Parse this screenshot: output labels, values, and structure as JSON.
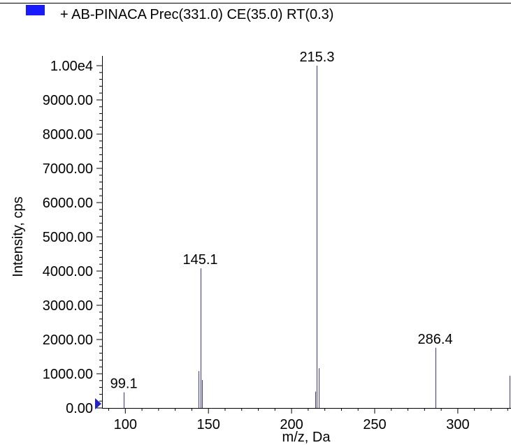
{
  "legend": {
    "label": "+ AB-PINACA Prec(331.0) CE(35.0) RT(0.3)",
    "swatch_color": "#1a1aff"
  },
  "chart_data": {
    "type": "bar",
    "xlabel": "m/z, Da",
    "ylabel": "Intensity, cps",
    "xlim": [
      86,
      332
    ],
    "ylim": [
      0,
      10000
    ],
    "grid": false,
    "legend_position": "top-left",
    "series_color": "#3333cc",
    "x_ticks": [
      100,
      150,
      200,
      250,
      300
    ],
    "x_tick_labels": [
      "100",
      "150",
      "200",
      "250",
      "300"
    ],
    "y_ticks": [
      0,
      1000,
      2000,
      3000,
      4000,
      5000,
      6000,
      7000,
      8000,
      9000,
      10000
    ],
    "y_tick_labels": [
      "0.00",
      "1000.00",
      "2000.00",
      "3000.00",
      "4000.00",
      "5000.00",
      "6000.00",
      "7000.00",
      "8000.00",
      "9000.00",
      "1.00e4"
    ],
    "peaks": [
      {
        "x": 99.1,
        "y": 460
      },
      {
        "x": 144.1,
        "y": 1080
      },
      {
        "x": 145.1,
        "y": 4080
      },
      {
        "x": 146.0,
        "y": 820
      },
      {
        "x": 214.3,
        "y": 480
      },
      {
        "x": 215.3,
        "y": 10000
      },
      {
        "x": 216.3,
        "y": 1160
      },
      {
        "x": 286.4,
        "y": 1760
      },
      {
        "x": 331.0,
        "y": 940
      },
      {
        "x": 331.2,
        "y": 780
      }
    ],
    "peak_labels": [
      {
        "x": 99.1,
        "y": 460,
        "text": "99.1"
      },
      {
        "x": 145.1,
        "y": 4080,
        "text": "145.1"
      },
      {
        "x": 215.3,
        "y": 10000,
        "text": "215.3"
      },
      {
        "x": 286.4,
        "y": 1760,
        "text": "286.4"
      }
    ]
  }
}
